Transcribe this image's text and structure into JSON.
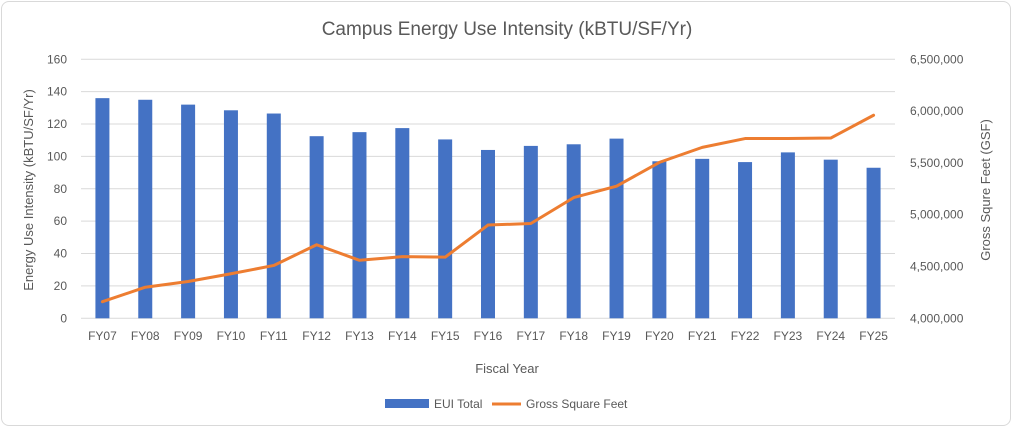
{
  "chart_data": {
    "type": "bar+line",
    "title": "Campus Energy Use Intensity (kBTU/SF/Yr)",
    "xlabel": "Fiscal Year",
    "ylabel": "Energy Use Intensity (kBTU/SF/Yr)",
    "y2label": "Gross Squre Feet (GSF)",
    "categories": [
      "FY07",
      "FY08",
      "FY09",
      "FY10",
      "FY11",
      "FY12",
      "FY13",
      "FY14",
      "FY15",
      "FY16",
      "FY17",
      "FY18",
      "FY19",
      "FY20",
      "FY21",
      "FY22",
      "FY23",
      "FY24",
      "FY25"
    ],
    "ylim": [
      0,
      160
    ],
    "yticks": [
      "0",
      "20",
      "40",
      "60",
      "80",
      "100",
      "120",
      "140",
      "160"
    ],
    "y2lim": [
      4000000,
      6500000
    ],
    "y2ticks": [
      "4,000,000",
      "4,500,000",
      "5,000,000",
      "5,500,000",
      "6,000,000",
      "6,500,000"
    ],
    "grid": true,
    "legend_position": "bottom",
    "series": [
      {
        "name": "EUI Total",
        "type": "bar",
        "axis": "left",
        "color": "#4472c4",
        "values": [
          136,
          135,
          132,
          128.5,
          126.5,
          112.5,
          115,
          117.5,
          110.5,
          104,
          106.5,
          107.5,
          111,
          97,
          98.5,
          96.5,
          102.5,
          98,
          93
        ]
      },
      {
        "name": "Gross Square Feet",
        "type": "line",
        "axis": "right",
        "color": "#ed7d31",
        "values": [
          4160000,
          4300000,
          4355000,
          4430000,
          4510000,
          4710000,
          4560000,
          4595000,
          4590000,
          4900000,
          4915000,
          5165000,
          5275000,
          5505000,
          5650000,
          5735000,
          5735000,
          5740000,
          5960000
        ]
      }
    ]
  }
}
